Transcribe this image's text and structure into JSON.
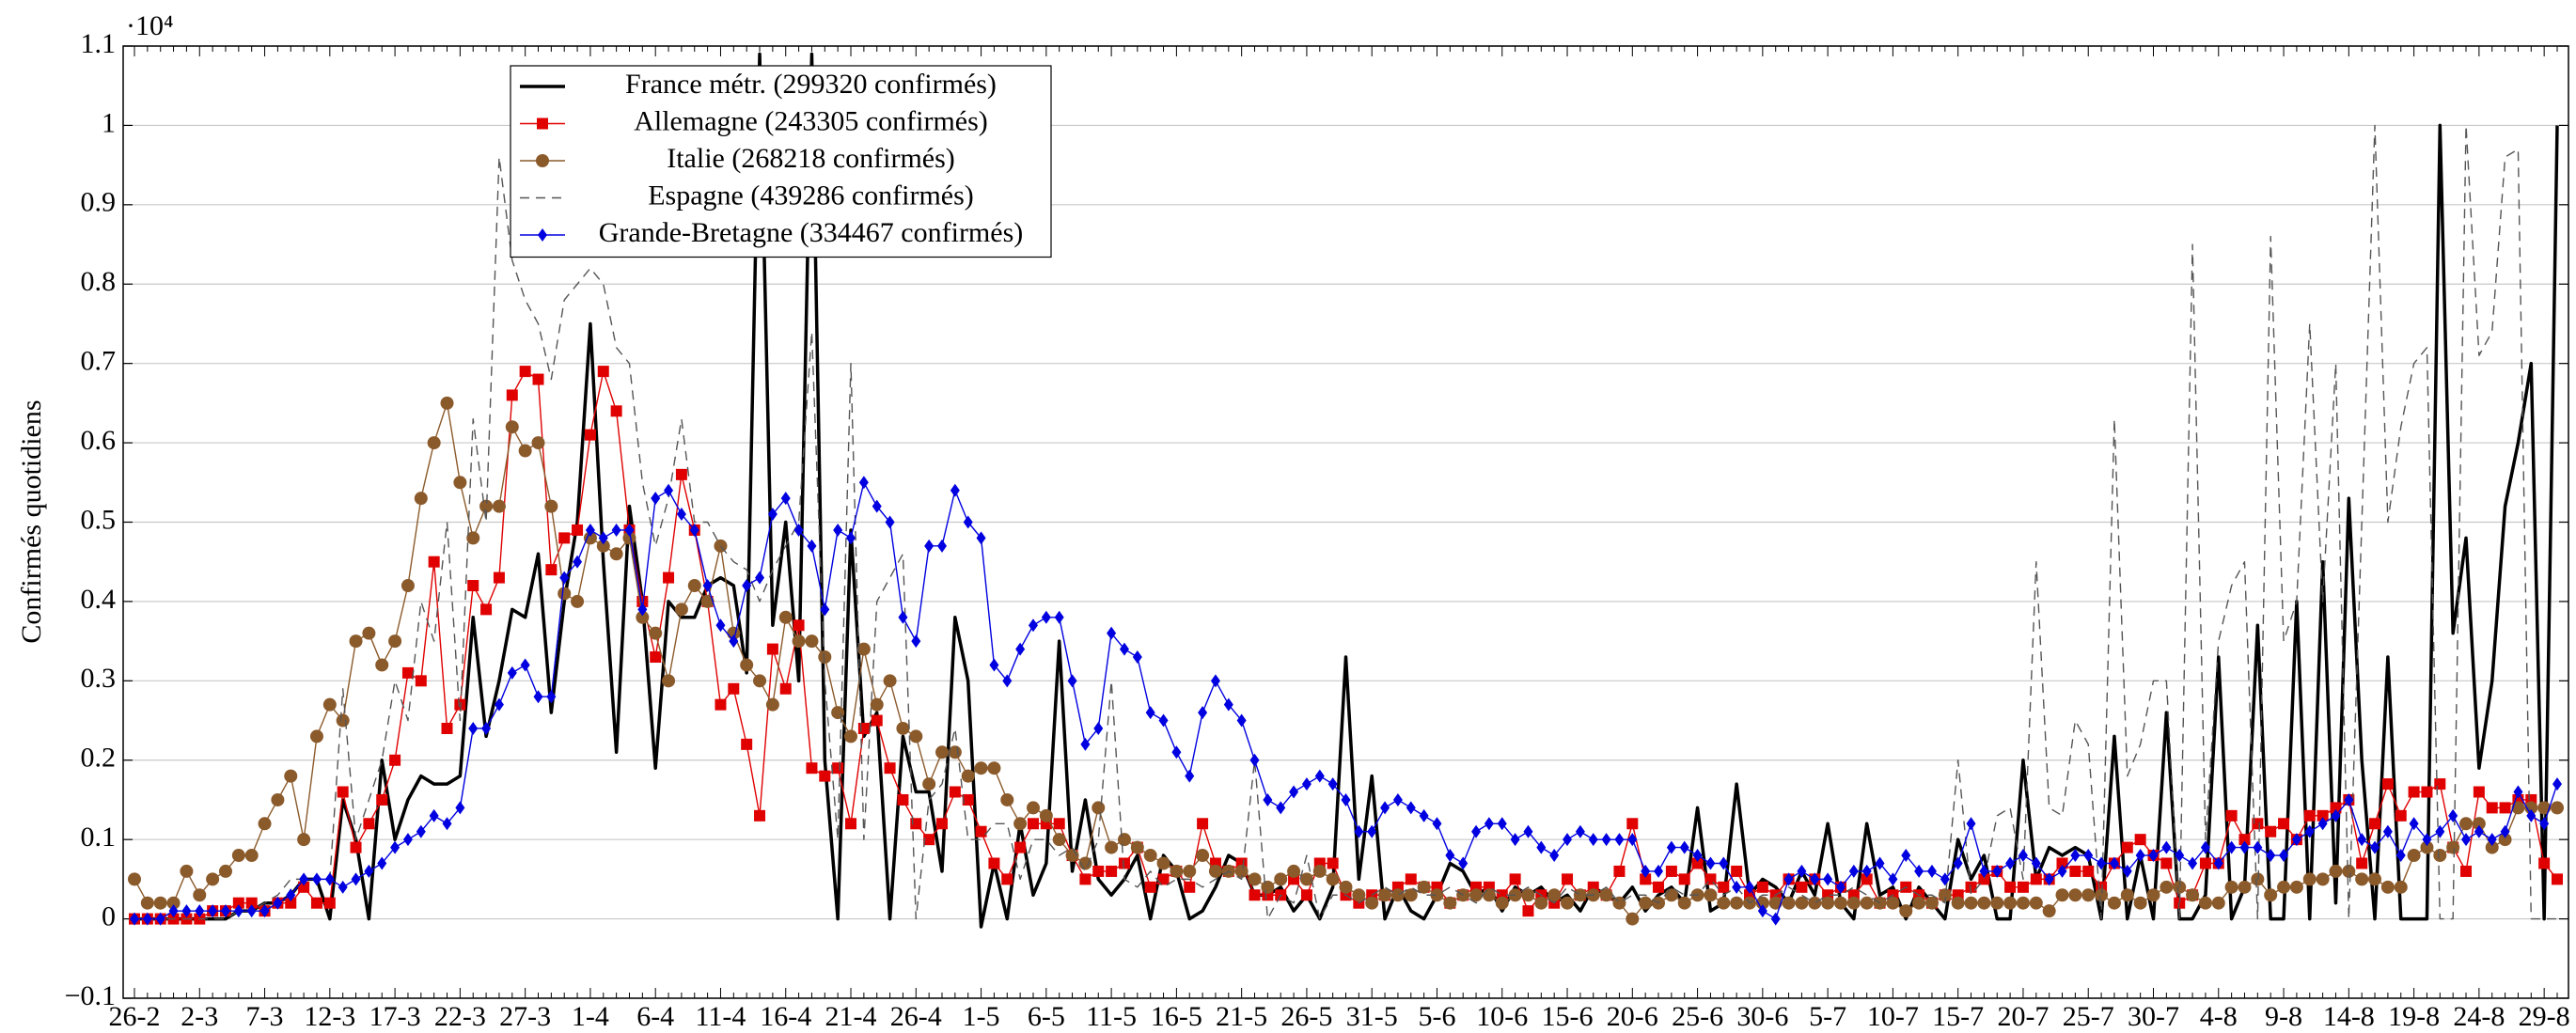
{
  "chart_data": {
    "type": "line",
    "y_multiplier": "·10⁴",
    "ylabel": "Confirmés quotidiens",
    "ylim": [
      -0.1,
      1.1
    ],
    "yticks": [
      {
        "value": -0.1,
        "label": "−0.1"
      },
      0,
      0.1,
      0.2,
      0.3,
      0.4,
      0.5,
      0.6,
      0.7,
      0.8,
      0.9,
      1,
      1.1
    ],
    "grid": true,
    "legend": "upper left",
    "categories": [
      "26-2",
      null,
      null,
      null,
      null,
      "2-3",
      null,
      null,
      null,
      null,
      "7-3",
      null,
      null,
      null,
      null,
      "12-3",
      null,
      null,
      null,
      null,
      "17-3",
      null,
      null,
      null,
      null,
      "22-3",
      null,
      null,
      null,
      null,
      "27-3",
      null,
      null,
      null,
      null,
      "1-4",
      null,
      null,
      null,
      null,
      "6-4",
      null,
      null,
      null,
      null,
      "11-4",
      null,
      null,
      null,
      null,
      "16-4",
      null,
      null,
      null,
      null,
      "21-4",
      null,
      null,
      null,
      null,
      "26-4",
      null,
      null,
      null,
      null,
      "1-5",
      null,
      null,
      null,
      null,
      "6-5",
      null,
      null,
      null,
      null,
      "11-5",
      null,
      null,
      null,
      null,
      "16-5",
      null,
      null,
      null,
      null,
      "21-5",
      null,
      null,
      null,
      null,
      "26-5",
      null,
      null,
      null,
      null,
      "31-5",
      null,
      null,
      null,
      null,
      "5-6",
      null,
      null,
      null,
      null,
      "10-6",
      null,
      null,
      null,
      null,
      "15-6",
      null,
      null,
      null,
      null,
      "20-6",
      null,
      null,
      null,
      null,
      "25-6",
      null,
      null,
      null,
      null,
      "30-6",
      null,
      null,
      null,
      null,
      "5-7",
      null,
      null,
      null,
      null,
      "10-7",
      null,
      null,
      null,
      null,
      "15-7",
      null,
      null,
      null,
      null,
      "20-7",
      null,
      null,
      null,
      null,
      "25-7",
      null,
      null,
      null,
      null,
      "30-7",
      null,
      null,
      null,
      null,
      "4-8",
      null,
      null,
      null,
      null,
      "9-8",
      null,
      null,
      null,
      null,
      "14-8",
      null,
      null,
      null,
      null,
      "19-8",
      null,
      null,
      null,
      null,
      "24-8",
      null,
      null,
      null,
      null,
      "29-8",
      null
    ],
    "series": [
      {
        "name": "France métr. (299320 confirmés)",
        "color": "#000000",
        "marker": "none",
        "linewidth": 2,
        "dashed": false,
        "values": [
          0,
          0,
          0,
          0,
          0,
          0,
          0,
          0,
          0.01,
          0.01,
          0.02,
          0.02,
          0.03,
          0.05,
          0.05,
          0,
          0.15,
          0.1,
          0,
          0.2,
          0.1,
          0.15,
          0.18,
          0.17,
          0.17,
          0.18,
          0.38,
          0.23,
          0.3,
          0.39,
          0.38,
          0.46,
          0.26,
          0.4,
          0.5,
          0.75,
          0.45,
          0.21,
          0.52,
          0.4,
          0.19,
          0.4,
          0.38,
          0.38,
          0.42,
          0.43,
          0.42,
          0.31,
          1.09,
          0.37,
          0.5,
          0.3,
          1.09,
          0.2,
          0,
          0.49,
          0.23,
          0.26,
          0,
          0.23,
          0.16,
          0.16,
          0.06,
          0.38,
          0.3,
          -0.01,
          0.07,
          0,
          0.12,
          0.03,
          0.07,
          0.35,
          0.06,
          0.15,
          0.05,
          0.03,
          0.05,
          0.08,
          0,
          0.08,
          0.06,
          0,
          0.01,
          0.04,
          0.08,
          0.07,
          0.03,
          0.03,
          0.04,
          0.01,
          0.03,
          0,
          0.04,
          0.33,
          0.05,
          0.18,
          0,
          0.04,
          0.01,
          0,
          0.03,
          0.07,
          0.06,
          0.03,
          0.04,
          0.01,
          0.04,
          0.03,
          0.04,
          0.02,
          0.03,
          0.01,
          0.04,
          0.03,
          0.02,
          0.04,
          0.01,
          0.03,
          0.04,
          0.02,
          0.14,
          0.01,
          0.02,
          0.17,
          0.03,
          0.05,
          0.04,
          0.02,
          0.06,
          0.03,
          0.12,
          0.02,
          0,
          0.12,
          0.03,
          0.04,
          0,
          0.04,
          0.02,
          0,
          0.1,
          0.05,
          0.08,
          0,
          0,
          0.2,
          0.05,
          0.09,
          0.08,
          0.09,
          0.08,
          0,
          0.23,
          0,
          0.08,
          0,
          0.26,
          0,
          0,
          0.03,
          0.33,
          0,
          0.04,
          0.37,
          0,
          0,
          0.4,
          0,
          0.45,
          0.02,
          0.53,
          0.2,
          0,
          0.33,
          0,
          0,
          0,
          1.0,
          0.36,
          0.48,
          0.19,
          0.3,
          0.52,
          0.6,
          0.7,
          0,
          1.0
        ]
      },
      {
        "name": "Allemagne (243305 confirmés)",
        "color": "#e00000",
        "marker": "square",
        "linewidth": 0.8,
        "dashed": false,
        "values": [
          0,
          0,
          0,
          0,
          0,
          0,
          0.01,
          0.01,
          0.02,
          0.02,
          0.01,
          0.02,
          0.02,
          0.04,
          0.02,
          0.02,
          0.16,
          0.09,
          0.12,
          0.15,
          0.2,
          0.31,
          0.3,
          0.45,
          0.24,
          0.27,
          0.42,
          0.39,
          0.43,
          0.66,
          0.69,
          0.68,
          0.44,
          0.48,
          0.49,
          0.61,
          0.69,
          0.64,
          0.49,
          0.4,
          0.33,
          0.43,
          0.56,
          0.49,
          0.4,
          0.27,
          0.29,
          0.22,
          0.13,
          0.34,
          0.29,
          0.37,
          0.19,
          0.18,
          0.19,
          0.12,
          0.24,
          0.25,
          0.19,
          0.15,
          0.12,
          0.1,
          0.12,
          0.16,
          0.15,
          0.11,
          0.07,
          0.05,
          0.09,
          0.12,
          0.12,
          0.12,
          0.08,
          0.05,
          0.06,
          0.06,
          0.07,
          0.09,
          0.04,
          0.05,
          0.06,
          0.04,
          0.12,
          0.07,
          0.06,
          0.07,
          0.03,
          0.03,
          0.03,
          0.05,
          0.03,
          0.07,
          0.07,
          0.03,
          0.02,
          0.03,
          0.03,
          0.04,
          0.05,
          0.04,
          0.04,
          0.02,
          0.03,
          0.04,
          0.04,
          0.03,
          0.05,
          0.01,
          0.03,
          0.02,
          0.05,
          0.03,
          0.04,
          0.03,
          0.06,
          0.12,
          0.05,
          0.04,
          0.06,
          0.05,
          0.07,
          0.05,
          0.04,
          0.06,
          0.03,
          0.04,
          0.03,
          0.05,
          0.04,
          0.05,
          0.03,
          0.04,
          0.03,
          0.05,
          0.02,
          0.03,
          0.04,
          0.03,
          0.02,
          0.03,
          0.03,
          0.04,
          0.05,
          0.06,
          0.04,
          0.04,
          0.05,
          0.05,
          0.07,
          0.06,
          0.06,
          0.04,
          0.07,
          0.09,
          0.1,
          0.08,
          0.07,
          0.02,
          0.03,
          0.07,
          0.07,
          0.13,
          0.1,
          0.12,
          0.11,
          0.12,
          0.1,
          0.13,
          0.13,
          0.14,
          0.15,
          0.07,
          0.12,
          0.17,
          0.13,
          0.16,
          0.16,
          0.17,
          0.09,
          0.06,
          0.16,
          0.14,
          0.14,
          0.15,
          0.15,
          0.07,
          0.05
        ]
      },
      {
        "name": "Italie (268218 confirmés)",
        "color": "#8b5a2b",
        "marker": "circle",
        "linewidth": 0.8,
        "dashed": false,
        "values": [
          0.05,
          0.02,
          0.02,
          0.02,
          0.06,
          0.03,
          0.05,
          0.06,
          0.08,
          0.08,
          0.12,
          0.15,
          0.18,
          0.1,
          0.23,
          0.27,
          0.25,
          0.35,
          0.36,
          0.32,
          0.35,
          0.42,
          0.53,
          0.6,
          0.65,
          0.55,
          0.48,
          0.52,
          0.52,
          0.62,
          0.59,
          0.6,
          0.52,
          0.41,
          0.4,
          0.48,
          0.47,
          0.46,
          0.48,
          0.38,
          0.36,
          0.3,
          0.39,
          0.42,
          0.4,
          0.47,
          0.36,
          0.32,
          0.3,
          0.27,
          0.38,
          0.35,
          0.35,
          0.33,
          0.26,
          0.23,
          0.34,
          0.27,
          0.3,
          0.24,
          0.23,
          0.17,
          0.21,
          0.21,
          0.18,
          0.19,
          0.19,
          0.15,
          0.12,
          0.14,
          0.13,
          0.1,
          0.08,
          0.07,
          0.14,
          0.09,
          0.1,
          0.09,
          0.08,
          0.07,
          0.06,
          0.06,
          0.08,
          0.06,
          0.06,
          0.06,
          0.05,
          0.04,
          0.05,
          0.06,
          0.05,
          0.06,
          0.05,
          0.04,
          0.03,
          0.02,
          0.03,
          0.03,
          0.03,
          0.04,
          0.03,
          0.02,
          0.03,
          0.03,
          0.03,
          0.02,
          0.03,
          0.03,
          0.02,
          0.03,
          0.02,
          0.03,
          0.03,
          0.03,
          0.02,
          0,
          0.02,
          0.02,
          0.03,
          0.02,
          0.03,
          0.03,
          0.02,
          0.02,
          0.02,
          0.02,
          0.02,
          0.02,
          0.02,
          0.02,
          0.02,
          0.02,
          0.02,
          0.02,
          0.02,
          0.02,
          0.01,
          0.02,
          0.02,
          0.03,
          0.02,
          0.02,
          0.02,
          0.02,
          0.02,
          0.02,
          0.02,
          0.01,
          0.03,
          0.03,
          0.03,
          0.03,
          0.02,
          0.03,
          0.02,
          0.03,
          0.04,
          0.04,
          0.03,
          0.02,
          0.02,
          0.04,
          0.04,
          0.05,
          0.03,
          0.04,
          0.04,
          0.05,
          0.05,
          0.06,
          0.06,
          0.05,
          0.05,
          0.04,
          0.04,
          0.08,
          0.09,
          0.08,
          0.09,
          0.12,
          0.12,
          0.09,
          0.1,
          0.14,
          0.14,
          0.14,
          0.14
        ]
      },
      {
        "name": "Espagne (439286 confirmés)",
        "color": "#555555",
        "marker": "none",
        "linewidth": 0.8,
        "dashed": true,
        "values": [
          0,
          0,
          0,
          0,
          0,
          0,
          0,
          0,
          0.01,
          0.01,
          0.02,
          0.03,
          0.05,
          0.05,
          0.05,
          0.05,
          0.29,
          0.1,
          0.15,
          0.2,
          0.3,
          0.25,
          0.4,
          0.35,
          0.5,
          0.25,
          0.63,
          0.5,
          0.96,
          0.83,
          0.78,
          0.75,
          0.68,
          0.78,
          0.8,
          0.82,
          0.8,
          0.72,
          0.7,
          0.55,
          0.47,
          0.53,
          0.63,
          0.5,
          0.5,
          0.47,
          0.45,
          0.44,
          0.4,
          0.44,
          0.47,
          0.5,
          0.74,
          0.3,
          0.1,
          0.7,
          0.1,
          0.4,
          0.43,
          0.46,
          0,
          0.15,
          0.17,
          0.24,
          0.1,
          0.1,
          0.12,
          0.12,
          0.05,
          0.1,
          0.1,
          0.08,
          0.09,
          0.06,
          0.1,
          0.3,
          0.05,
          0.04,
          0.06,
          0.04,
          0.05,
          0.05,
          0.04,
          0.05,
          0.06,
          0.05,
          0.2,
          0,
          0.03,
          0.02,
          0.08,
          0,
          0.03,
          0.03,
          0.02,
          0.03,
          0.04,
          0.03,
          0.04,
          0.03,
          0.03,
          0.04,
          0.03,
          0.02,
          0.04,
          0.03,
          0.03,
          0.04,
          0.03,
          0.02,
          0.04,
          0.03,
          0.03,
          0.04,
          0.02,
          0.03,
          0.03,
          0.02,
          0.04,
          0.03,
          0.03,
          0.05,
          0.03,
          0.04,
          0.02,
          0.03,
          0.03,
          0.04,
          0.03,
          0.02,
          0.03,
          0.03,
          0.04,
          0.03,
          0.02,
          0.03,
          0.04,
          0.03,
          0.03,
          0.02,
          0.2,
          0.03,
          0.05,
          0.13,
          0.14,
          0.05,
          0.45,
          0.14,
          0.13,
          0.25,
          0.22,
          0,
          0.63,
          0.18,
          0.22,
          0.3,
          0.3,
          0,
          0.85,
          0.1,
          0.35,
          0.42,
          0.45,
          0,
          0.86,
          0.35,
          0.4,
          0.75,
          0.4,
          0.7,
          0,
          0.5,
          1.0,
          0.5,
          0.62,
          0.7,
          0.72,
          0,
          0,
          1.0,
          0.71,
          0.74,
          0.96,
          0.97,
          0,
          0,
          0
        ]
      },
      {
        "name": "Grande-Bretagne (334467 confirmés)",
        "color": "#0000e0",
        "marker": "diamond",
        "linewidth": 0.8,
        "dashed": false,
        "values": [
          0,
          0,
          0,
          0.01,
          0.01,
          0.01,
          0.01,
          0.01,
          0.01,
          0.01,
          0.01,
          0.02,
          0.03,
          0.05,
          0.05,
          0.05,
          0.04,
          0.05,
          0.06,
          0.07,
          0.09,
          0.1,
          0.11,
          0.13,
          0.12,
          0.14,
          0.24,
          0.24,
          0.27,
          0.31,
          0.32,
          0.28,
          0.28,
          0.43,
          0.45,
          0.49,
          0.48,
          0.49,
          0.49,
          0.39,
          0.53,
          0.54,
          0.51,
          0.49,
          0.42,
          0.37,
          0.35,
          0.42,
          0.43,
          0.51,
          0.53,
          0.49,
          0.47,
          0.39,
          0.49,
          0.48,
          0.55,
          0.52,
          0.5,
          0.38,
          0.35,
          0.47,
          0.47,
          0.54,
          0.5,
          0.48,
          0.32,
          0.3,
          0.34,
          0.37,
          0.38,
          0.38,
          0.3,
          0.22,
          0.24,
          0.36,
          0.34,
          0.33,
          0.26,
          0.25,
          0.21,
          0.18,
          0.26,
          0.3,
          0.27,
          0.25,
          0.2,
          0.15,
          0.14,
          0.16,
          0.17,
          0.18,
          0.17,
          0.15,
          0.11,
          0.11,
          0.14,
          0.15,
          0.14,
          0.13,
          0.12,
          0.08,
          0.07,
          0.11,
          0.12,
          0.12,
          0.1,
          0.11,
          0.09,
          0.08,
          0.1,
          0.11,
          0.1,
          0.1,
          0.1,
          0.1,
          0.06,
          0.06,
          0.09,
          0.09,
          0.08,
          0.07,
          0.07,
          0.04,
          0.04,
          0.01,
          0,
          0.05,
          0.06,
          0.05,
          0.05,
          0.04,
          0.06,
          0.06,
          0.07,
          0.05,
          0.08,
          0.06,
          0.06,
          0.05,
          0.07,
          0.12,
          0.06,
          0.06,
          0.07,
          0.08,
          0.07,
          0.05,
          0.06,
          0.08,
          0.08,
          0.07,
          0.07,
          0.06,
          0.08,
          0.08,
          0.09,
          0.08,
          0.07,
          0.09,
          0.07,
          0.09,
          0.09,
          0.09,
          0.08,
          0.08,
          0.1,
          0.11,
          0.12,
          0.13,
          0.15,
          0.1,
          0.09,
          0.11,
          0.08,
          0.12,
          0.1,
          0.11,
          0.13,
          0.1,
          0.11,
          0.1,
          0.11,
          0.16,
          0.13,
          0.12,
          0.17
        ]
      }
    ]
  }
}
